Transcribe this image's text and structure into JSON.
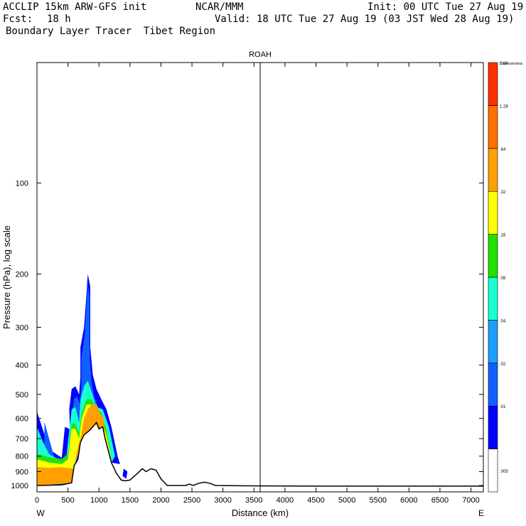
{
  "header": {
    "model": "ACCLIP 15km ARW-GFS init",
    "org": "NCAR/MMM",
    "init": "Init: 00 UTC Tue 27 Aug 19",
    "fcst_label": "Fcst:",
    "fcst_value": "18 h",
    "valid": "Valid: 18 UTC Tue 27 Aug 19 (03 JST Wed 28 Aug 19)",
    "field": "Boundary Layer Tracer  Tibet Region"
  },
  "chart_data": {
    "type": "heatmap",
    "title": "ROAH",
    "xlabel": "Distance (km)",
    "ylabel": "Pressure (hPa), log scale",
    "xlim": [
      0,
      7200
    ],
    "ylim_hpa": [
      1050,
      40
    ],
    "x_ticks": [
      0,
      500,
      1000,
      1500,
      2000,
      2500,
      3000,
      3500,
      4000,
      4500,
      5000,
      5500,
      6000,
      6500,
      7000
    ],
    "y_ticks": [
      100,
      200,
      300,
      400,
      500,
      600,
      700,
      800,
      900,
      1000
    ],
    "end_labels": {
      "left": "W",
      "right": "E"
    },
    "marker_line_km": 3600,
    "colorbar": {
      "unit_label": "Dimensionless",
      "levels": [
        ".005",
        ".01",
        ".02",
        ".04",
        ".08",
        ".16",
        ".32",
        ".64",
        "1.28",
        "2.56"
      ],
      "colors": [
        "#ffffff",
        "#0000ff",
        "#1060ff",
        "#1a9eff",
        "#18ffd0",
        "#22e000",
        "#ffff00",
        "#ffa000",
        "#ff7000",
        "#ff3000"
      ]
    },
    "terrain": [
      [
        0,
        1000
      ],
      [
        200,
        998
      ],
      [
        400,
        995
      ],
      [
        560,
        980
      ],
      [
        600,
        860
      ],
      [
        660,
        820
      ],
      [
        700,
        720
      ],
      [
        760,
        680
      ],
      [
        840,
        660
      ],
      [
        900,
        640
      ],
      [
        960,
        620
      ],
      [
        1000,
        650
      ],
      [
        1060,
        640
      ],
      [
        1100,
        700
      ],
      [
        1160,
        780
      ],
      [
        1200,
        840
      ],
      [
        1280,
        910
      ],
      [
        1360,
        960
      ],
      [
        1420,
        965
      ],
      [
        1500,
        960
      ],
      [
        1600,
        920
      ],
      [
        1700,
        880
      ],
      [
        1760,
        900
      ],
      [
        1840,
        880
      ],
      [
        1920,
        890
      ],
      [
        2000,
        950
      ],
      [
        2100,
        1000
      ],
      [
        2400,
        1000
      ],
      [
        2460,
        990
      ],
      [
        2520,
        1000
      ],
      [
        2600,
        985
      ],
      [
        2700,
        975
      ],
      [
        2800,
        985
      ],
      [
        2880,
        1000
      ],
      [
        3400,
        1003
      ],
      [
        4500,
        1005
      ],
      [
        7200,
        1005
      ]
    ],
    "tracer": {
      "outer_blue": [
        [
          0,
          570
        ],
        [
          80,
          640
        ],
        [
          200,
          760
        ],
        [
          400,
          810
        ],
        [
          450,
          640
        ],
        [
          520,
          650
        ],
        [
          540,
          720
        ],
        [
          520,
          560
        ],
        [
          560,
          480
        ],
        [
          620,
          470
        ],
        [
          680,
          500
        ],
        [
          700,
          440
        ],
        [
          700,
          350
        ],
        [
          760,
          300
        ],
        [
          800,
          230
        ],
        [
          820,
          200
        ],
        [
          860,
          220
        ],
        [
          860,
          350
        ],
        [
          900,
          430
        ],
        [
          960,
          480
        ],
        [
          1040,
          520
        ],
        [
          1120,
          560
        ],
        [
          1200,
          640
        ],
        [
          1300,
          800
        ],
        [
          1340,
          850
        ],
        [
          1200,
          840
        ],
        [
          1160,
          780
        ],
        [
          1100,
          700
        ],
        [
          1060,
          640
        ],
        [
          1000,
          650
        ],
        [
          900,
          640
        ],
        [
          760,
          680
        ],
        [
          600,
          860
        ],
        [
          560,
          980
        ],
        [
          400,
          995
        ],
        [
          0,
          1000
        ]
      ],
      "mid_teal": [
        [
          0,
          640
        ],
        [
          100,
          720
        ],
        [
          200,
          790
        ],
        [
          400,
          830
        ],
        [
          480,
          790
        ],
        [
          560,
          560
        ],
        [
          620,
          550
        ],
        [
          680,
          620
        ],
        [
          700,
          520
        ],
        [
          760,
          470
        ],
        [
          820,
          450
        ],
        [
          880,
          490
        ],
        [
          960,
          550
        ],
        [
          1060,
          560
        ],
        [
          1160,
          640
        ],
        [
          1260,
          800
        ],
        [
          1200,
          840
        ],
        [
          1100,
          700
        ],
        [
          1000,
          650
        ],
        [
          760,
          680
        ],
        [
          600,
          860
        ],
        [
          560,
          980
        ],
        [
          0,
          1000
        ]
      ],
      "yellow_green": [
        [
          0,
          820
        ],
        [
          200,
          840
        ],
        [
          400,
          850
        ],
        [
          500,
          820
        ],
        [
          560,
          650
        ],
        [
          620,
          650
        ],
        [
          680,
          700
        ],
        [
          720,
          600
        ],
        [
          800,
          540
        ],
        [
          880,
          540
        ],
        [
          960,
          580
        ],
        [
          1040,
          600
        ],
        [
          1120,
          680
        ],
        [
          1200,
          820
        ],
        [
          1100,
          700
        ],
        [
          1000,
          650
        ],
        [
          760,
          680
        ],
        [
          600,
          860
        ],
        [
          560,
          980
        ],
        [
          0,
          1000
        ]
      ],
      "orange": [
        [
          0,
          870
        ],
        [
          200,
          875
        ],
        [
          400,
          870
        ],
        [
          600,
          880
        ],
        [
          640,
          780
        ],
        [
          700,
          700
        ],
        [
          760,
          600
        ],
        [
          820,
          560
        ],
        [
          880,
          540
        ],
        [
          960,
          540
        ],
        [
          1020,
          580
        ],
        [
          1080,
          600
        ],
        [
          1100,
          700
        ],
        [
          1000,
          650
        ],
        [
          760,
          680
        ],
        [
          600,
          860
        ],
        [
          560,
          980
        ],
        [
          0,
          1000
        ]
      ],
      "isolated_blob": [
        [
          1400,
          880
        ],
        [
          1460,
          900
        ],
        [
          1440,
          950
        ],
        [
          1380,
          930
        ]
      ]
    }
  }
}
